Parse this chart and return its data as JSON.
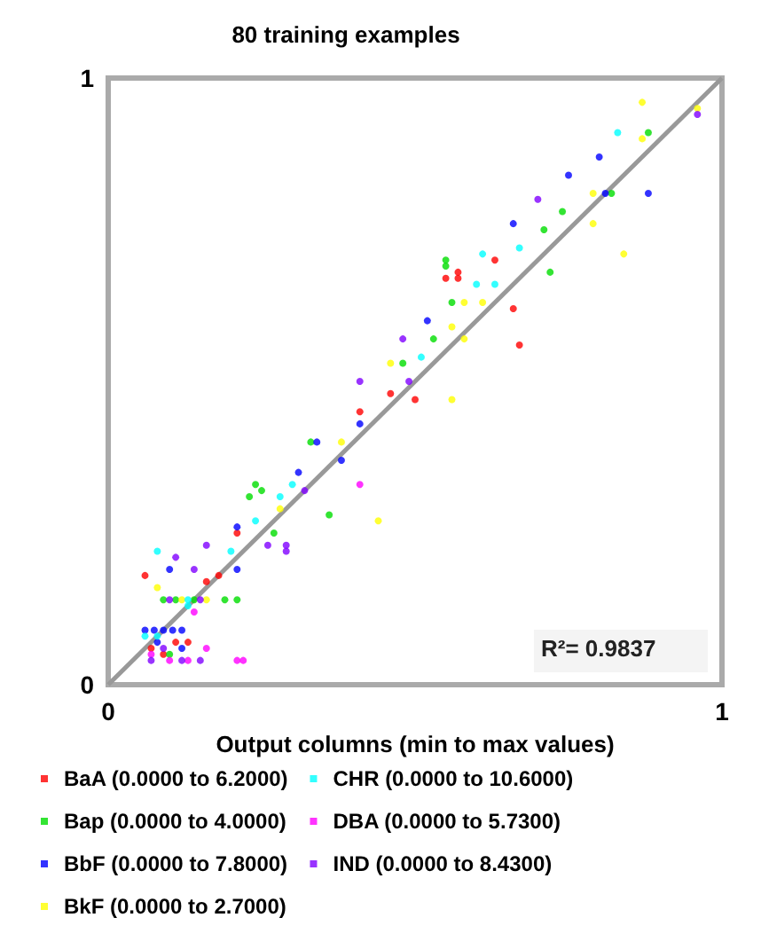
{
  "chart_data": {
    "type": "scatter",
    "title": "80 training examples",
    "xlabel": "Output columns (min to max values)",
    "xlim": [
      0,
      1
    ],
    "ylim": [
      0,
      1
    ],
    "xticks": [
      0,
      1
    ],
    "yticks": [
      0,
      1
    ],
    "grid": false,
    "legend": "bottom",
    "marker": "circle",
    "annotations": [
      "R²= 0.9837"
    ],
    "series": [
      {
        "name": "BaA (0.0000 to 6.2000)",
        "color": "#ff0000",
        "x": [
          0.63,
          0.55,
          0.57,
          0.57,
          0.66,
          0.67,
          0.46,
          0.5,
          0.41,
          0.21,
          0.06,
          0.16,
          0.18,
          0.13,
          0.07,
          0.09,
          0.11
        ],
        "values": [
          0.7,
          0.67,
          0.68,
          0.67,
          0.62,
          0.56,
          0.48,
          0.47,
          0.45,
          0.25,
          0.18,
          0.17,
          0.18,
          0.07,
          0.06,
          0.05,
          0.07
        ]
      },
      {
        "name": "Bap (0.0000 to 4.0000)",
        "color": "#00dd00",
        "x": [
          0.88,
          0.82,
          0.74,
          0.71,
          0.55,
          0.55,
          0.72,
          0.56,
          0.53,
          0.48,
          0.33,
          0.24,
          0.25,
          0.23,
          0.36,
          0.27,
          0.09,
          0.11,
          0.14,
          0.19,
          0.21,
          0.1
        ],
        "values": [
          0.91,
          0.81,
          0.78,
          0.75,
          0.7,
          0.69,
          0.68,
          0.63,
          0.57,
          0.53,
          0.4,
          0.33,
          0.32,
          0.31,
          0.28,
          0.25,
          0.14,
          0.14,
          0.14,
          0.14,
          0.14,
          0.05
        ]
      },
      {
        "name": "BbF (0.0000 to 7.8000)",
        "color": "#0000ff",
        "x": [
          0.8,
          0.75,
          0.81,
          0.88,
          0.66,
          0.52,
          0.41,
          0.34,
          0.38,
          0.31,
          0.21,
          0.1,
          0.21,
          0.06,
          0.075,
          0.09,
          0.105,
          0.12,
          0.12,
          0.08
        ],
        "values": [
          0.87,
          0.84,
          0.81,
          0.81,
          0.76,
          0.6,
          0.43,
          0.4,
          0.37,
          0.35,
          0.26,
          0.19,
          0.19,
          0.09,
          0.09,
          0.09,
          0.09,
          0.09,
          0.06,
          0.07
        ]
      },
      {
        "name": "BkF (0.0000 to 2.7000)",
        "color": "#ffff00",
        "x": [
          0.87,
          0.96,
          0.87,
          0.79,
          0.79,
          0.84,
          0.58,
          0.61,
          0.56,
          0.58,
          0.46,
          0.56,
          0.38,
          0.28,
          0.44,
          0.08,
          0.12,
          0.16
        ],
        "values": [
          0.96,
          0.95,
          0.9,
          0.81,
          0.76,
          0.71,
          0.63,
          0.63,
          0.59,
          0.57,
          0.53,
          0.47,
          0.4,
          0.29,
          0.27,
          0.16,
          0.14,
          0.14
        ]
      },
      {
        "name": "CHR (0.0000 to 10.6000)",
        "color": "#00ffff",
        "x": [
          0.83,
          0.67,
          0.61,
          0.6,
          0.63,
          0.51,
          0.3,
          0.28,
          0.24,
          0.08,
          0.2,
          0.13,
          0.13,
          0.06,
          0.08
        ],
        "values": [
          0.91,
          0.72,
          0.71,
          0.66,
          0.66,
          0.54,
          0.33,
          0.31,
          0.27,
          0.22,
          0.22,
          0.14,
          0.13,
          0.08,
          0.08
        ]
      },
      {
        "name": "DBA (0.0000 to 5.7300)",
        "color": "#ff00ff",
        "x": [
          0.41,
          0.14,
          0.16,
          0.13,
          0.21,
          0.22,
          0.07,
          0.1
        ],
        "values": [
          0.33,
          0.12,
          0.06,
          0.04,
          0.04,
          0.04,
          0.05,
          0.04
        ]
      },
      {
        "name": "IND (0.0000 to 8.4300)",
        "color": "#8000ff",
        "x": [
          0.96,
          0.7,
          0.48,
          0.49,
          0.41,
          0.32,
          0.26,
          0.29,
          0.29,
          0.11,
          0.16,
          0.14,
          0.1,
          0.15,
          0.12,
          0.15,
          0.07,
          0.09
        ],
        "values": [
          0.94,
          0.8,
          0.57,
          0.5,
          0.5,
          0.32,
          0.23,
          0.23,
          0.22,
          0.21,
          0.23,
          0.19,
          0.14,
          0.14,
          0.04,
          0.04,
          0.04,
          0.06
        ]
      },
      {
        "type": "line",
        "color": "#999999",
        "x": [
          0,
          1
        ],
        "values": [
          0,
          1
        ],
        "marker": "none"
      }
    ]
  }
}
